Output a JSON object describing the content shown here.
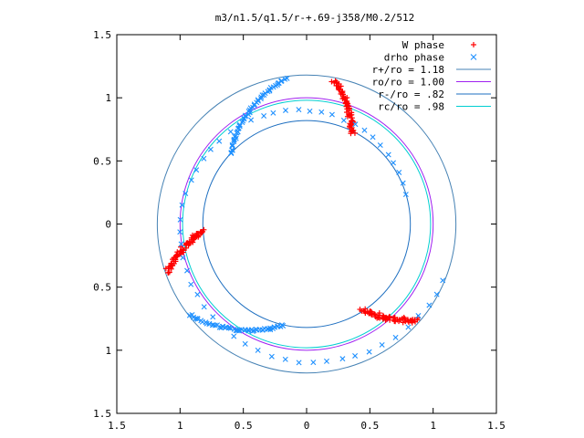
{
  "chart_data": {
    "type": "scatter",
    "title": "m3/n1.5/q1.5/r-+.69-j358/M0.2/512",
    "xlabel": "",
    "ylabel": "",
    "xlim": [
      -1.5,
      1.5
    ],
    "ylim": [
      -1.5,
      1.5
    ],
    "x_ticks": [
      -1.5,
      -1,
      -0.5,
      0,
      0.5,
      1,
      1.5
    ],
    "x_tick_labels": [
      "1.5",
      "1",
      "0.5",
      "0",
      "0.5",
      "1",
      "1.5"
    ],
    "y_ticks": [
      1.5,
      1,
      0.5,
      0,
      -0.5,
      -1,
      -1.5
    ],
    "y_tick_labels": [
      "1.5",
      "1",
      "0.5",
      "0",
      "0.5",
      "1",
      "1.5"
    ],
    "grid": false,
    "legend_position": "top-right",
    "series": [
      {
        "name": "W phase",
        "marker": "+",
        "color": "#ff0000",
        "segments": [
          {
            "r0": 1.16,
            "a0": 79,
            "r1": 0.81,
            "a1": 63
          },
          {
            "r0": 1.16,
            "a0": 199,
            "r1": 0.81,
            "a1": 183
          },
          {
            "r0": 1.16,
            "a0": 319,
            "r1": 0.81,
            "a1": 303
          }
        ]
      },
      {
        "name": "drho phase",
        "marker": "x",
        "color": "#1e90ff",
        "arcs": [
          {
            "r0": 0.82,
            "a0": 137,
            "r1": 1.17,
            "a1": 98
          },
          {
            "r0": 0.82,
            "a0": 17,
            "r1": 1.17,
            "a1": 338
          },
          {
            "r0": 0.82,
            "a0": 257,
            "r1": 1.17,
            "a1": 218
          }
        ]
      },
      {
        "name": "r+/ro = 1.18",
        "type": "circle",
        "radius": 1.18,
        "color": "#4682b4"
      },
      {
        "name": "ro/ro = 1.00",
        "type": "circle",
        "radius": 1.0,
        "color": "#a020f0"
      },
      {
        "name": "r-/ro = .82",
        "type": "circle",
        "radius": 0.82,
        "color": "#1e6fc0"
      },
      {
        "name": "rc/ro = .98",
        "type": "circle",
        "radius": 0.98,
        "color": "#00ced1"
      }
    ]
  }
}
